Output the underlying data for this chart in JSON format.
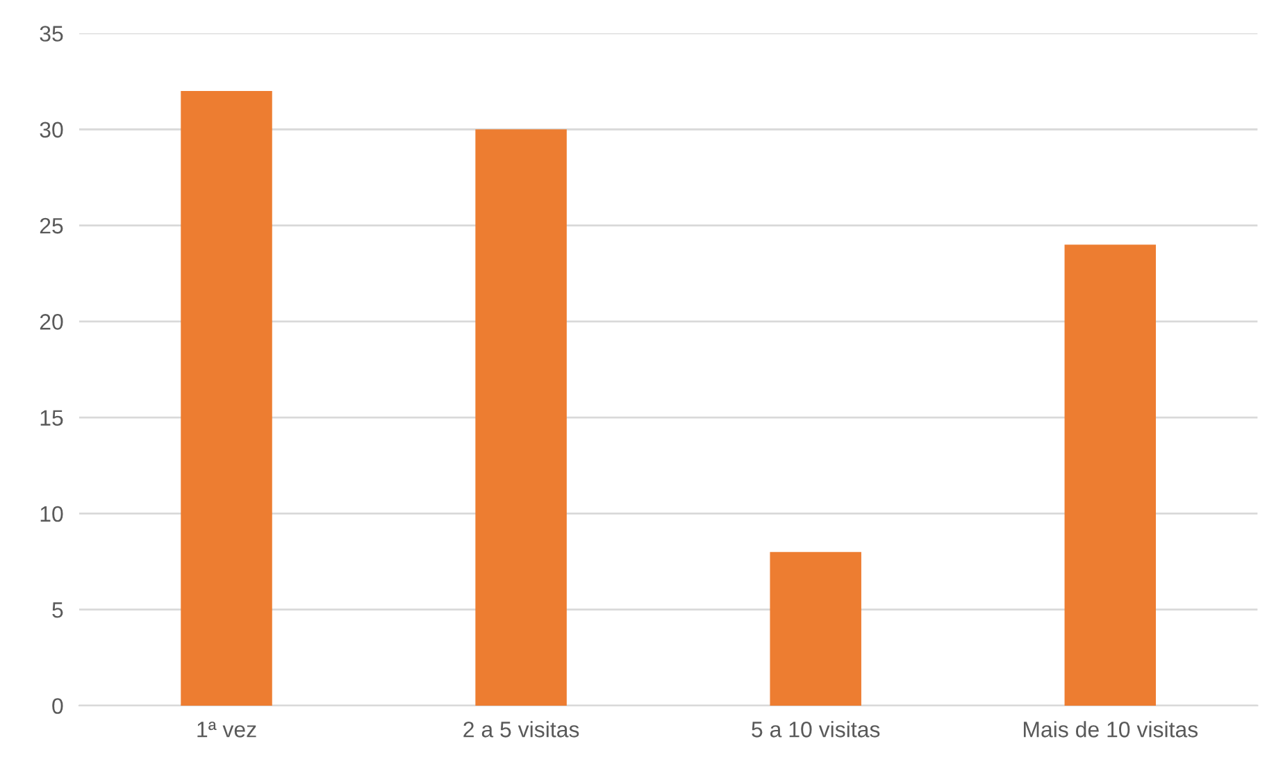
{
  "chart_data": {
    "type": "bar",
    "categories": [
      "1ª vez",
      "2 a 5 visitas",
      "5 a 10 visitas",
      "Mais de 10 visitas"
    ],
    "values": [
      32,
      30,
      8,
      24
    ],
    "color": "#ed7d31",
    "ylim": [
      0,
      35
    ],
    "yticks": [
      0,
      5,
      10,
      15,
      20,
      25,
      30,
      35
    ],
    "grid": "y"
  }
}
